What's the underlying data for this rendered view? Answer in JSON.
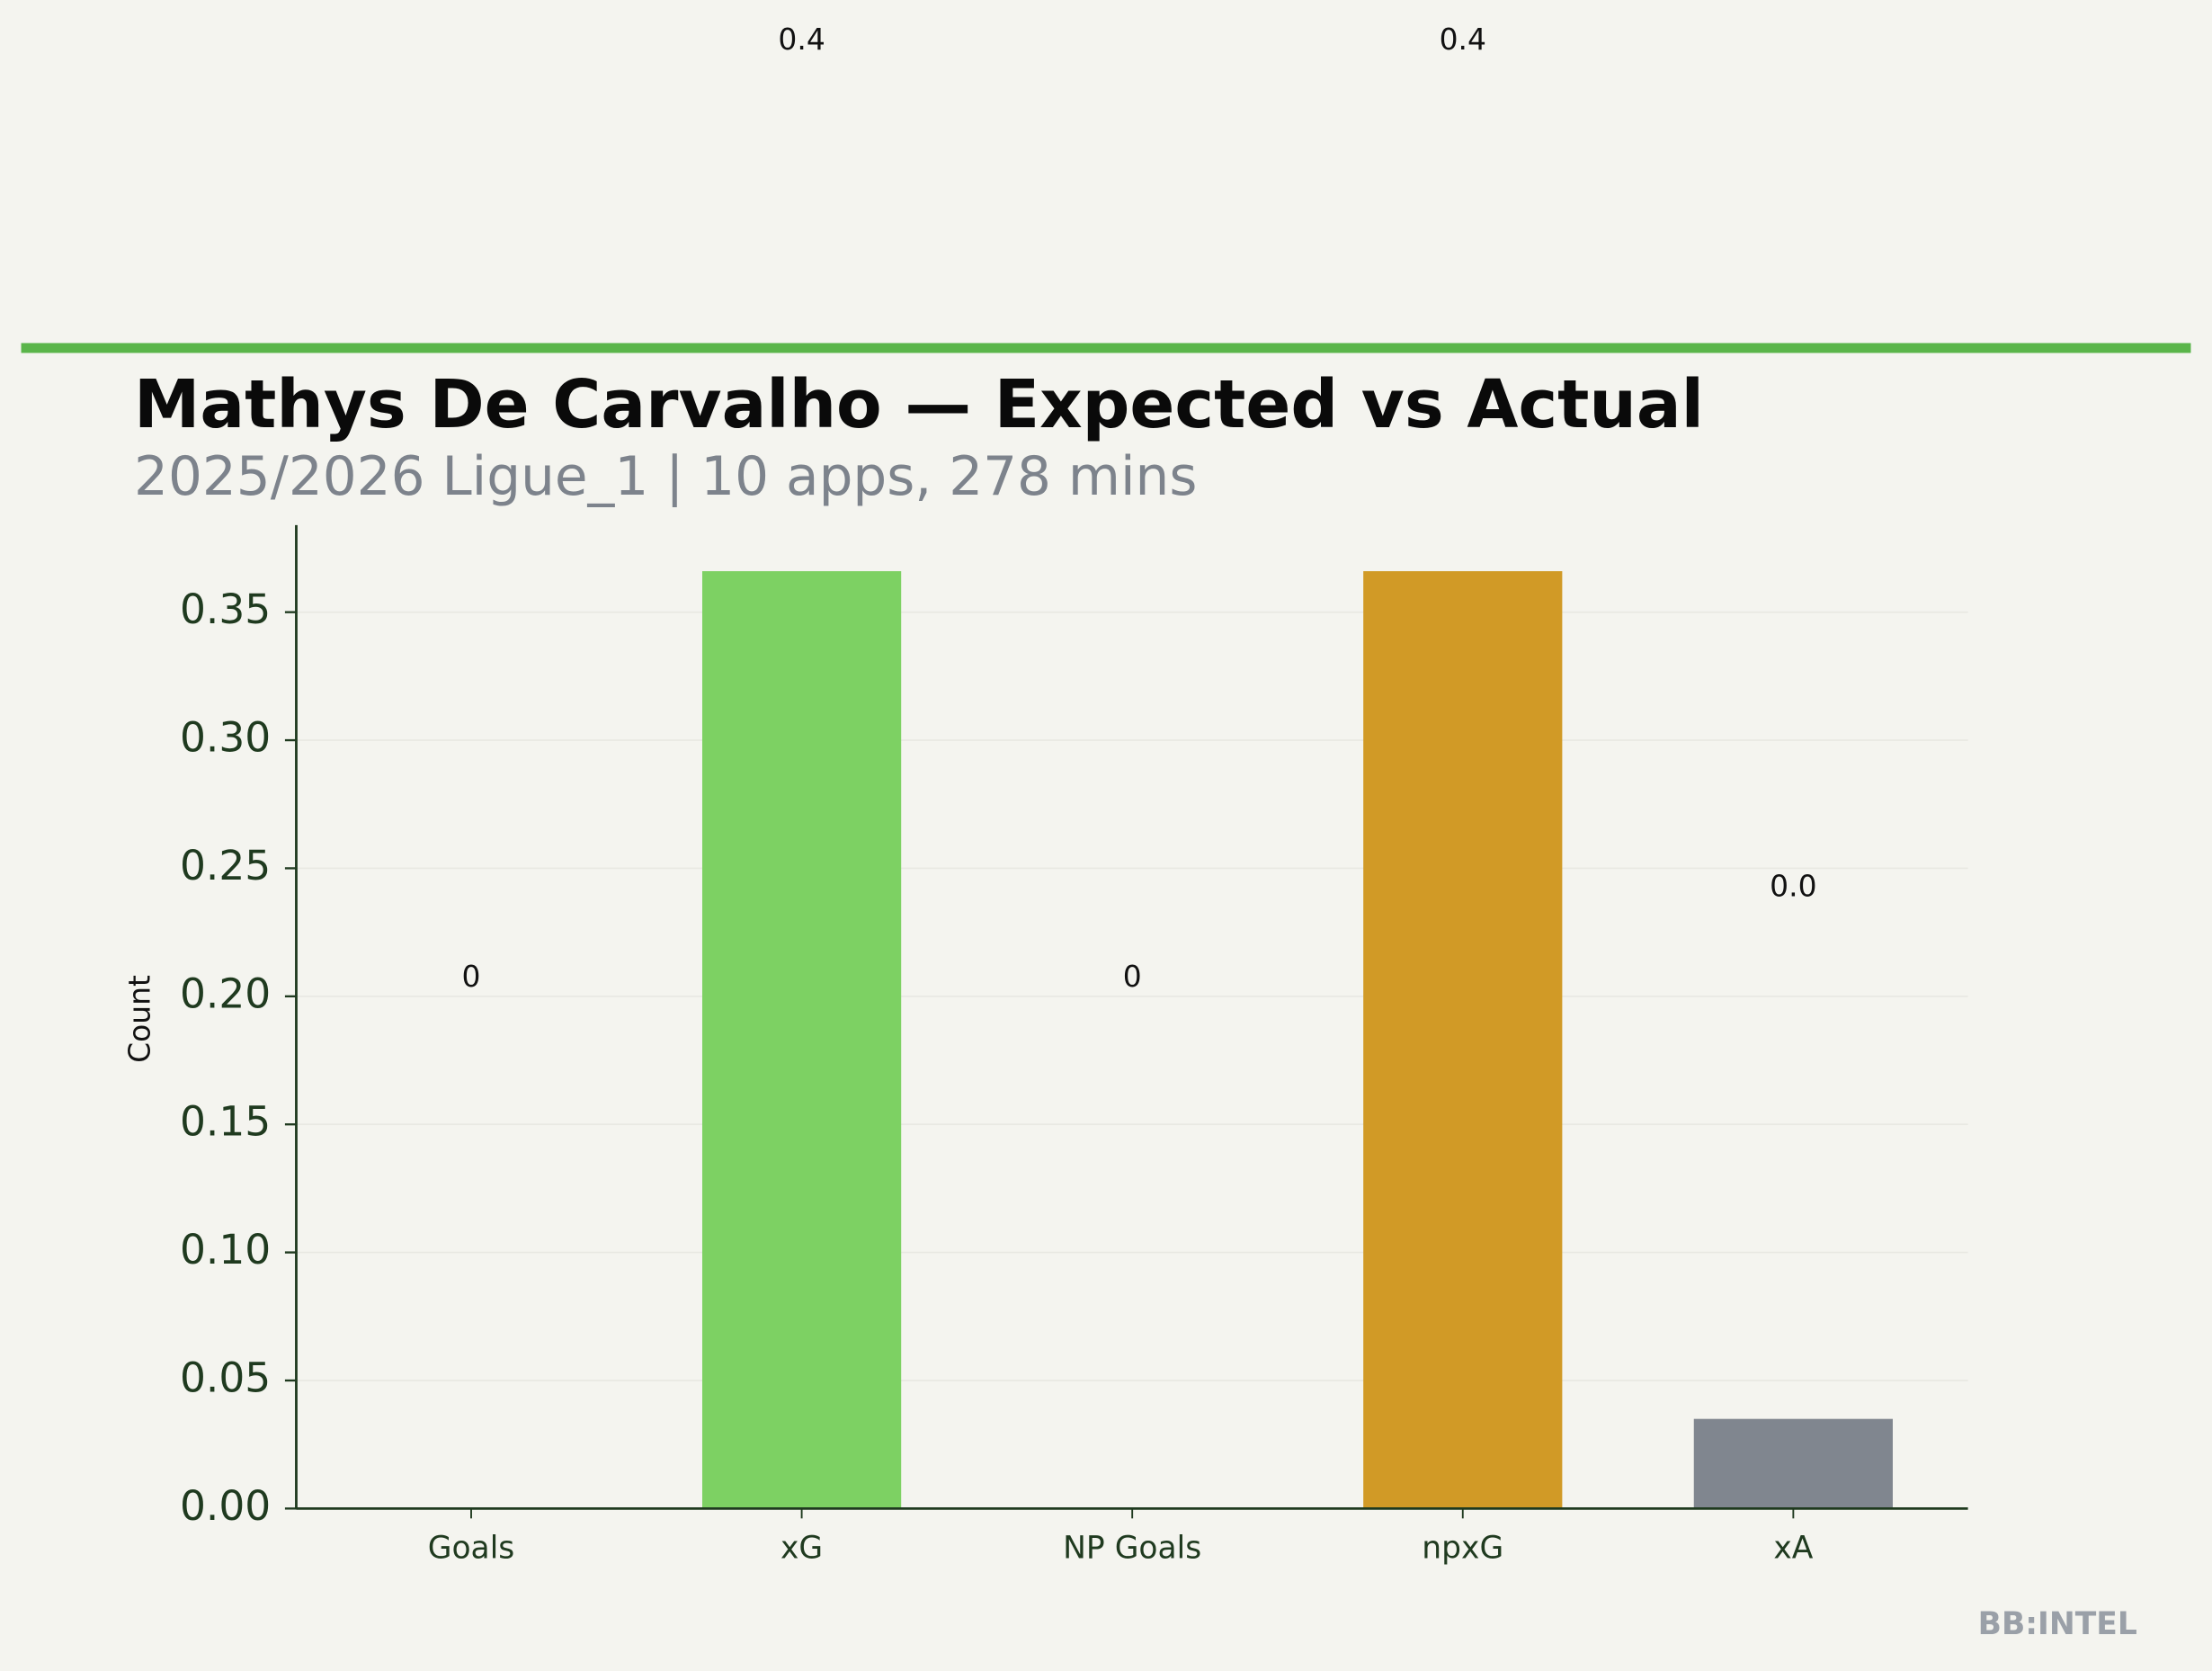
{
  "chart_data": {
    "type": "bar",
    "title": "Mathys De Carvalho — Expected vs Actual",
    "subtitle": "2025/2026 Ligue_1 | 10 apps, 278 mins",
    "y_label": "Count",
    "watermark": "BB:INTEL",
    "categories": [
      "Goals",
      "xG",
      "NP Goals",
      "npxG",
      "xA"
    ],
    "values": [
      0,
      0.366,
      0,
      0.366,
      0.035
    ],
    "value_labels": [
      "0",
      "0.4",
      "0",
      "0.4",
      "0.0"
    ],
    "colors": [
      "#7dd163",
      "#7dd163",
      "#d19a26",
      "#d19a26",
      "#80868f"
    ],
    "ylim": [
      0,
      0.384
    ],
    "yticks": [
      {
        "value": 0,
        "label": "0.00"
      },
      {
        "value": 0.05,
        "label": "0.05"
      },
      {
        "value": 0.1,
        "label": "0.10"
      },
      {
        "value": 0.15,
        "label": "0.15"
      },
      {
        "value": 0.2,
        "label": "0.20"
      },
      {
        "value": 0.25,
        "label": "0.25"
      },
      {
        "value": 0.3,
        "label": "0.30"
      },
      {
        "value": 0.35,
        "label": "0.35"
      }
    ],
    "grid": true
  }
}
